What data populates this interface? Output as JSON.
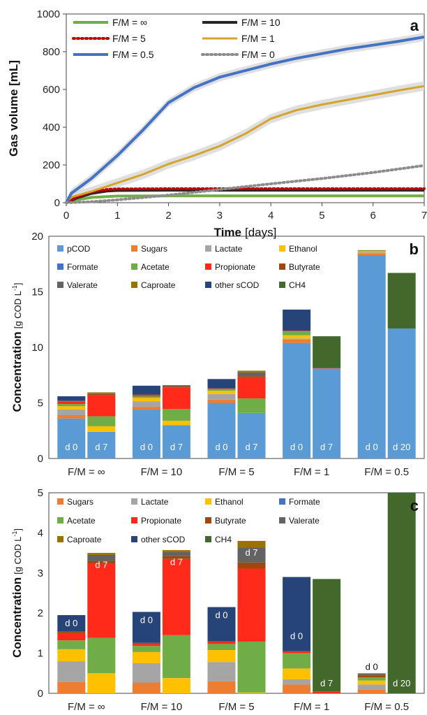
{
  "colors": {
    "pCOD": "#5b9bd5",
    "Sugars": "#ed7d31",
    "Lactate": "#a5a5a5",
    "Ethanol": "#ffc000",
    "Formate": "#4472c4",
    "Acetate": "#70ad47",
    "Propionate": "#ff2a1a",
    "Butyrate": "#9e480e",
    "Valerate": "#636363",
    "Caproate": "#997300",
    "other sCOD": "#264478",
    "CH4": "#43682b"
  },
  "chart_data": [
    {
      "panel": "a",
      "type": "line",
      "xlabel_bold": "Time",
      "xlabel_unit": "[days]",
      "ylabel": "Gas volume [mL]",
      "xlim": [
        0,
        7
      ],
      "ylim": [
        0,
        1000
      ],
      "xticks": [
        "0",
        "1",
        "2",
        "3",
        "4",
        "5",
        "6",
        "7"
      ],
      "yticks": [
        "0",
        "200",
        "400",
        "600",
        "800",
        "1000"
      ],
      "legend_position": "top-left",
      "series": [
        {
          "name": "F/M = ∞",
          "color": "#70ad47",
          "style": "solid",
          "width": 4,
          "x": [
            0,
            0.2,
            0.5,
            1,
            2,
            3,
            4,
            5,
            6,
            7
          ],
          "y": [
            0,
            15,
            28,
            35,
            36,
            36,
            36,
            36,
            36,
            36
          ]
        },
        {
          "name": "F/M = 10",
          "color": "#262626",
          "style": "solid",
          "width": 4,
          "x": [
            0,
            0.2,
            0.5,
            0.8,
            1,
            2,
            3,
            4,
            5,
            6,
            7
          ],
          "y": [
            0,
            25,
            50,
            62,
            65,
            66,
            66,
            66,
            66,
            66,
            66
          ]
        },
        {
          "name": "F/M = 5",
          "color": "#c00000",
          "style": "dotted",
          "width": 4,
          "x": [
            0,
            0.2,
            0.5,
            0.8,
            1,
            2,
            3,
            4,
            5,
            6,
            7
          ],
          "y": [
            0,
            30,
            58,
            70,
            73,
            74,
            74,
            74,
            74,
            74,
            74
          ]
        },
        {
          "name": "F/M = 1",
          "color": "#d4a52a",
          "style": "solid",
          "width": 3,
          "x": [
            0,
            0.1,
            0.5,
            1,
            1.5,
            2,
            2.5,
            3,
            3.5,
            4,
            4.5,
            5,
            5.5,
            6,
            6.5,
            7
          ],
          "y": [
            0,
            30,
            60,
            105,
            150,
            205,
            250,
            300,
            365,
            445,
            490,
            520,
            545,
            570,
            595,
            618
          ],
          "band": 25
        },
        {
          "name": "F/M = 0.5",
          "color": "#4472c4",
          "style": "solid",
          "width": 4,
          "x": [
            0,
            0.1,
            0.5,
            1,
            1.5,
            2,
            2.5,
            3,
            3.5,
            4,
            4.5,
            5,
            5.5,
            6,
            6.5,
            7
          ],
          "y": [
            0,
            50,
            130,
            250,
            385,
            530,
            610,
            665,
            700,
            735,
            765,
            790,
            815,
            835,
            855,
            878
          ],
          "band": 22
        },
        {
          "name": "F/M = 0",
          "color": "#8c8c8c",
          "style": "dotted",
          "width": 4,
          "x": [
            0,
            0.5,
            1,
            2,
            3,
            4,
            5,
            6,
            7
          ],
          "y": [
            0,
            5,
            15,
            40,
            70,
            100,
            128,
            160,
            197
          ]
        }
      ]
    },
    {
      "panel": "b",
      "type": "bar",
      "ylabel_main": "Concentration",
      "ylabel_unit": "[g COD L",
      "ylabel_sup": "-1",
      "ylabel_close": "]",
      "ylim": [
        0,
        20
      ],
      "yticks": [
        "0",
        "5",
        "10",
        "15",
        "20"
      ],
      "groups": [
        "F/M = ∞",
        "F/M = 10",
        "F/M = 5",
        "F/M = 1",
        "F/M  = 0.5"
      ],
      "legend": [
        "pCOD",
        "Sugars",
        "Lactate",
        "Ethanol",
        "Formate",
        "Acetate",
        "Propionate",
        "Butyrate",
        "Valerate",
        "Caproate",
        "other sCOD",
        "CH4"
      ],
      "bars": [
        {
          "group": 0,
          "label": "d 0",
          "segments": {
            "pCOD": 3.6,
            "Sugars": 0.3,
            "Lactate": 0.5,
            "Ethanol": 0.3,
            "Acetate": 0.2,
            "Propionate": 0.2,
            "Butyrate": 0.05,
            "Valerate": 0.05,
            "other sCOD": 0.4
          }
        },
        {
          "group": 0,
          "label": "d 7",
          "segments": {
            "pCOD": 2.4,
            "Ethanol": 0.5,
            "Acetate": 0.9,
            "Propionate": 1.9,
            "Butyrate": 0.1,
            "Valerate": 0.1,
            "Caproate": 0.05
          }
        },
        {
          "group": 1,
          "label": "d 0",
          "segments": {
            "pCOD": 4.4,
            "Sugars": 0.25,
            "Lactate": 0.5,
            "Ethanol": 0.3,
            "Acetate": 0.15,
            "Propionate": 0.1,
            "Butyrate": 0.05,
            "other sCOD": 0.8
          }
        },
        {
          "group": 1,
          "label": "d 7",
          "segments": {
            "pCOD": 3.0,
            "Ethanol": 0.4,
            "Acetate": 1.05,
            "Propionate": 1.95,
            "Butyrate": 0.1,
            "Valerate": 0.1
          }
        },
        {
          "group": 2,
          "label": "d 0",
          "segments": {
            "pCOD": 5.0,
            "Sugars": 0.3,
            "Lactate": 0.5,
            "Ethanol": 0.3,
            "Acetate": 0.15,
            "Propionate": 0.05,
            "other sCOD": 0.85
          }
        },
        {
          "group": 2,
          "label": "d 7",
          "segments": {
            "pCOD": 4.1,
            "Acetate": 1.3,
            "Propionate": 1.85,
            "Butyrate": 0.15,
            "Valerate": 0.35,
            "Caproate": 0.15
          }
        },
        {
          "group": 3,
          "label": "d 0",
          "segments": {
            "pCOD": 10.4,
            "Sugars": 0.3,
            "Lactate": 0.1,
            "Ethanol": 0.3,
            "Acetate": 0.35,
            "Propionate": 0.05,
            "other sCOD": 1.9
          }
        },
        {
          "group": 3,
          "label": "d 7",
          "segments": {
            "pCOD": 8.1,
            "Propionate": 0.05,
            "CH4": 2.85
          }
        },
        {
          "group": 4,
          "label": "d 0",
          "segments": {
            "pCOD": 18.3,
            "Sugars": 0.15,
            "Lactate": 0.1,
            "Ethanol": 0.1,
            "Acetate": 0.05,
            "Caproate": 0.05
          }
        },
        {
          "group": 4,
          "label": "d 20",
          "segments": {
            "pCOD": 11.7,
            "CH4": 5.0
          }
        }
      ]
    },
    {
      "panel": "c",
      "type": "bar",
      "ylabel_main": "Concentration",
      "ylabel_unit": "[g COD L",
      "ylabel_sup": "-1",
      "ylabel_close": "]",
      "ylim": [
        0,
        5
      ],
      "yticks": [
        "0",
        "1",
        "2",
        "3",
        "4",
        "5"
      ],
      "groups": [
        "F/M = ∞",
        "F/M = 10",
        "F/M = 5",
        "F/M = 1",
        "F/M = 0.5"
      ],
      "legend": [
        "Sugars",
        "Lactate",
        "Ethanol",
        "Formate",
        "Acetate",
        "Propionate",
        "Butyrate",
        "Valerate",
        "Caproate",
        "other sCOD",
        "CH4"
      ],
      "bars": [
        {
          "group": 0,
          "label": "d 0",
          "segments": {
            "Sugars": 0.28,
            "Lactate": 0.52,
            "Ethanol": 0.3,
            "Acetate": 0.22,
            "Propionate": 0.18,
            "Butyrate": 0.05,
            "other sCOD": 0.4
          }
        },
        {
          "group": 0,
          "label": "d 7",
          "segments": {
            "Ethanol": 0.5,
            "Acetate": 0.88,
            "Propionate": 1.85,
            "Butyrate": 0.07,
            "Valerate": 0.15,
            "Caproate": 0.05
          }
        },
        {
          "group": 1,
          "label": "d 0",
          "segments": {
            "Sugars": 0.27,
            "Lactate": 0.48,
            "Ethanol": 0.28,
            "Acetate": 0.15,
            "Propionate": 0.05,
            "Butyrate": 0.03,
            "other sCOD": 0.77
          }
        },
        {
          "group": 1,
          "label": "d 7",
          "segments": {
            "Ethanol": 0.38,
            "Acetate": 1.07,
            "Propionate": 1.9,
            "Butyrate": 0.07,
            "Valerate": 0.1,
            "Caproate": 0.05
          }
        },
        {
          "group": 2,
          "label": "d 0",
          "segments": {
            "Sugars": 0.3,
            "Lactate": 0.48,
            "Ethanol": 0.3,
            "Acetate": 0.15,
            "Propionate": 0.05,
            "Butyrate": 0.02,
            "other sCOD": 0.85
          }
        },
        {
          "group": 2,
          "label": "d 7",
          "segments": {
            "Ethanol": 0.02,
            "Acetate": 1.27,
            "Propionate": 1.82,
            "Butyrate": 0.15,
            "Valerate": 0.38,
            "Caproate": 0.16
          }
        },
        {
          "group": 3,
          "label": "d 0",
          "segments": {
            "Sugars": 0.22,
            "Lactate": 0.13,
            "Ethanol": 0.27,
            "Acetate": 0.38,
            "Propionate": 0.05,
            "other sCOD": 1.85
          }
        },
        {
          "group": 3,
          "label": "d 7",
          "segments": {
            "Propionate": 0.05,
            "CH4": 2.8
          }
        },
        {
          "group": 4,
          "label": "d 0",
          "segments": {
            "Sugars": 0.1,
            "Lactate": 0.12,
            "Ethanol": 0.1,
            "Acetate": 0.08,
            "Butyrate": 0.05,
            "Valerate": 0.03,
            "Caproate": 0.02
          }
        },
        {
          "group": 4,
          "label": "d 20",
          "segments": {
            "CH4": 5.0
          }
        }
      ]
    }
  ]
}
